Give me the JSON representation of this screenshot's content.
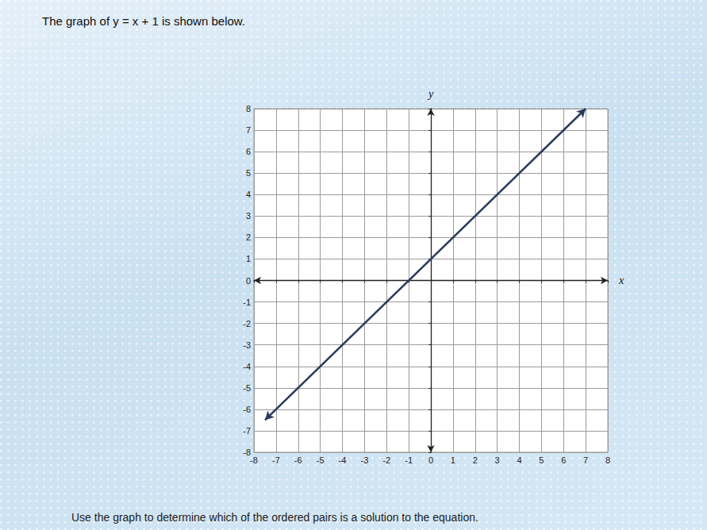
{
  "chart_data": {
    "type": "line",
    "title": "The graph of y = x + 1 is shown below.",
    "annotations": [
      "Use the graph to determine which of the ordered pairs is a solution to the equation."
    ],
    "x_label": "x",
    "y_label": "y",
    "x": [
      -7.5,
      7
    ],
    "values": [
      -6.5,
      8
    ],
    "color": "#283a5c",
    "marker": "arrow",
    "line_style": "solid",
    "xlim": [
      -8,
      8
    ],
    "ylim": [
      -8,
      8
    ],
    "xticks": [
      -8,
      -7,
      -6,
      -5,
      -4,
      -3,
      -2,
      -1,
      0,
      1,
      2,
      3,
      4,
      5,
      6,
      7,
      8
    ],
    "yticks": [
      -8,
      -7,
      -6,
      -5,
      -4,
      -3,
      -2,
      -1,
      0,
      1,
      2,
      3,
      4,
      5,
      6,
      7,
      8
    ],
    "grid": true
  }
}
